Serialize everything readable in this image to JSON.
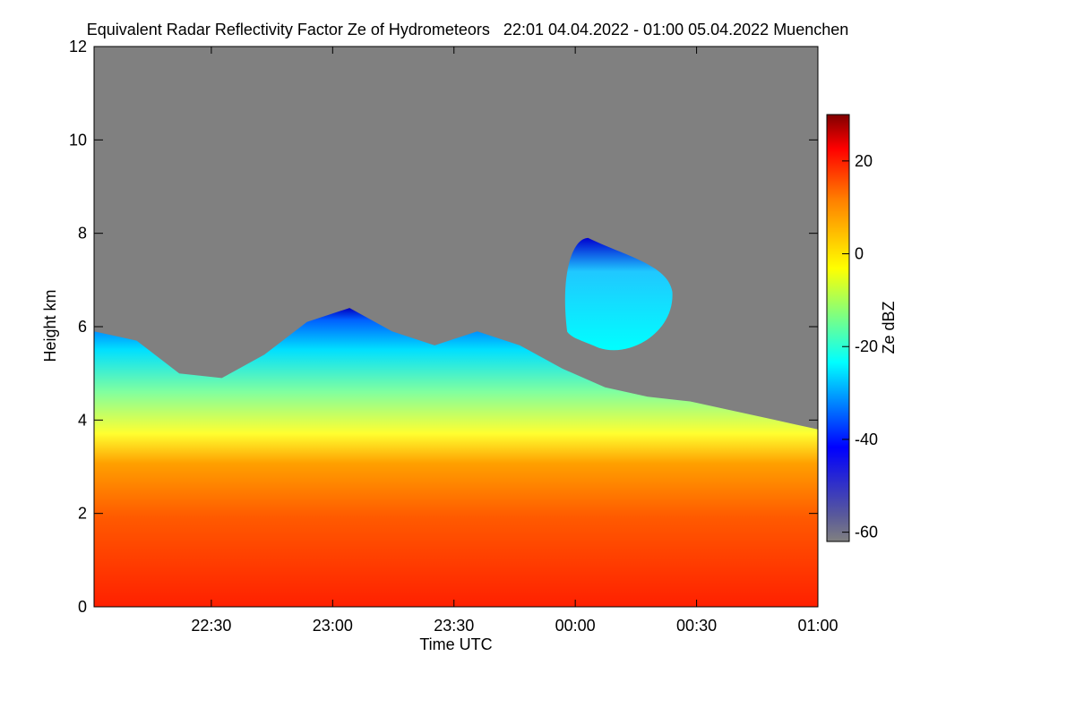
{
  "chart_data": {
    "type": "heatmap",
    "title": "Equivalent Radar Reflectivity Factor Ze of Hydrometeors   22:01 04.04.2022 - 01:00 05.04.2022 Muenchen",
    "xlabel": "Time UTC",
    "ylabel": "Height km",
    "colorbar_label": "Ze dBZ",
    "x_range": [
      "22:01",
      "01:00"
    ],
    "ylim": [
      0,
      12
    ],
    "x_ticks": [
      "22:30",
      "23:00",
      "23:30",
      "00:00",
      "00:30",
      "01:00"
    ],
    "y_ticks": [
      "0",
      "2",
      "4",
      "6",
      "8",
      "10",
      "12"
    ],
    "colorbar_range": [
      -62,
      30
    ],
    "colorbar_ticks": [
      "-60",
      "-40",
      "-20",
      "0",
      "20"
    ],
    "no_signal_color": "#808080",
    "colorscale": [
      "#00008b",
      "#0000ff",
      "#00ffff",
      "#ffff00",
      "#ff8000",
      "#ff0000",
      "#800000"
    ],
    "echo_top_km": [
      5.9,
      5.7,
      5.0,
      4.9,
      5.4,
      6.1,
      6.4,
      5.9,
      5.6,
      5.9,
      5.6,
      5.1,
      4.7,
      4.5,
      4.4,
      4.2,
      4.0,
      3.8
    ],
    "upper_cloud": {
      "time_start": "23:58",
      "time_end": "00:24",
      "base_km": 5.7,
      "top_km": 7.9
    },
    "dominant_reflectivity_dBZ": {
      "below_3km": 15,
      "3_to_4km": -5,
      "near_echo_top": -35
    }
  }
}
